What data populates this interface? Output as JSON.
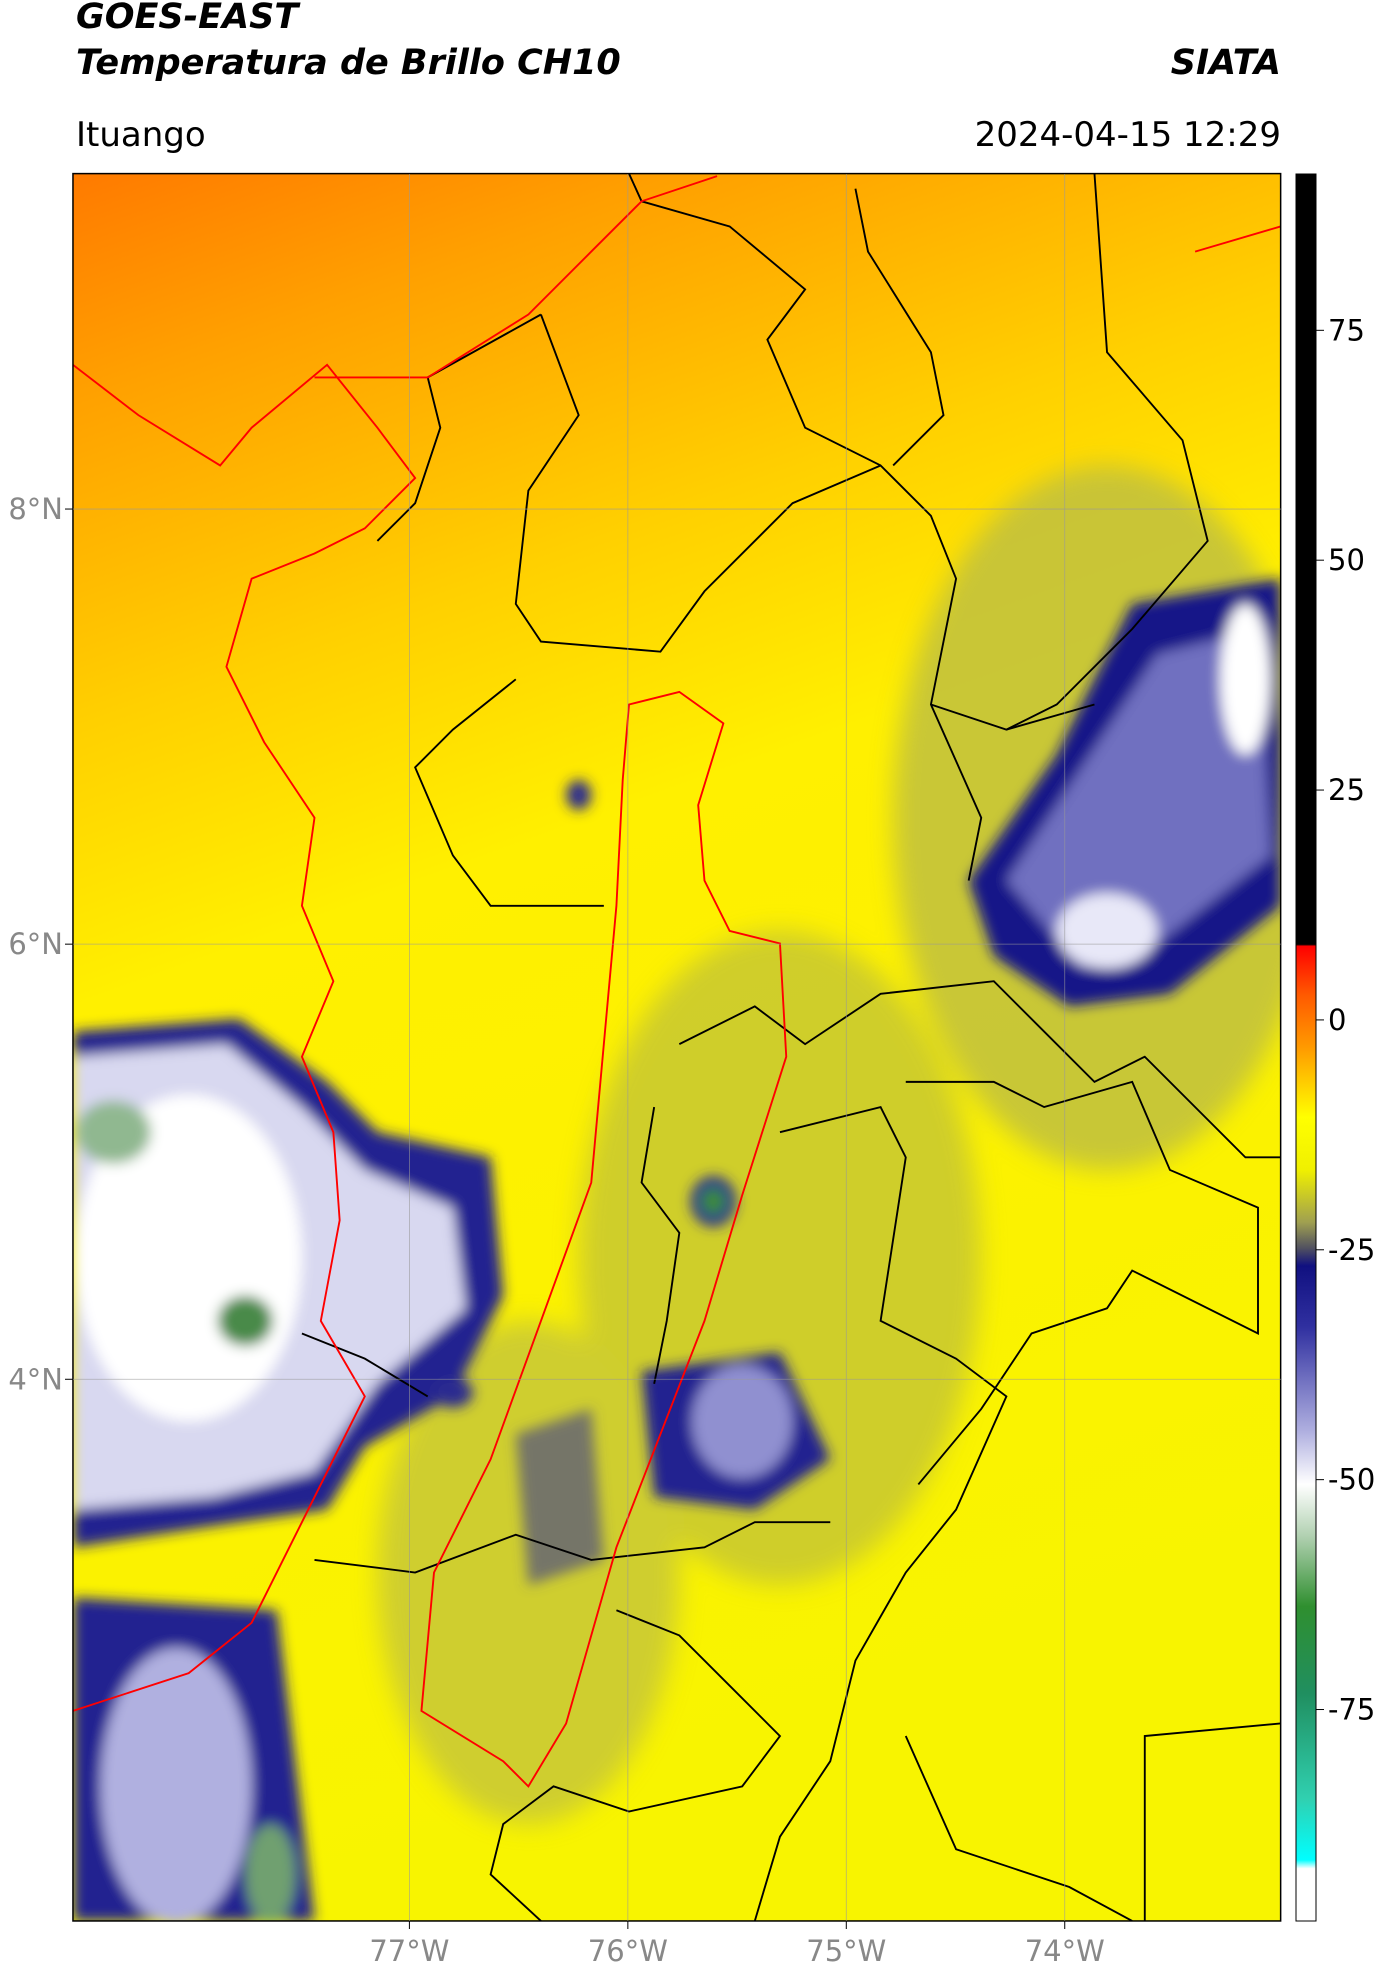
{
  "header": {
    "satellite": "GOES-EAST",
    "product": "Temperatura de Brillo CH10",
    "agency": "SIATA",
    "region": "Ituango",
    "datetime": "2024-04-15 12:29"
  },
  "map": {
    "xlim": [
      -78.54,
      -73.01
    ],
    "ylim": [
      1.51,
      9.54
    ],
    "xticks": [
      {
        "value": -77,
        "label": "77°W"
      },
      {
        "value": -76,
        "label": "76°W"
      },
      {
        "value": -75,
        "label": "75°W"
      },
      {
        "value": -74,
        "label": "74°W"
      }
    ],
    "yticks": [
      {
        "value": 8,
        "label": "8°N"
      },
      {
        "value": 6,
        "label": "6°N"
      },
      {
        "value": 4,
        "label": "4°N"
      }
    ],
    "grid": true
  },
  "colorbar": {
    "clim": [
      -98,
      92
    ],
    "ticks": [
      75,
      50,
      25,
      0,
      -25,
      -50,
      -75
    ]
  }
}
